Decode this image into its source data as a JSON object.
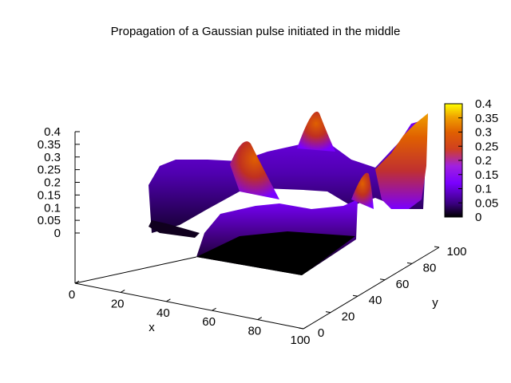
{
  "chart_data": {
    "type": "surface3d",
    "title": "Propagation of a Gaussian pulse initiated in the middle",
    "xlabel": "x",
    "ylabel": "y",
    "zlabel": "",
    "xlim": [
      0,
      100
    ],
    "ylim": [
      0,
      100
    ],
    "zlim": [
      0,
      0.4
    ],
    "x_ticks": [
      "0",
      "20",
      "40",
      "60",
      "80",
      "100"
    ],
    "y_ticks": [
      "0",
      "20",
      "40",
      "60",
      "80",
      "100"
    ],
    "z_ticks": [
      "0",
      "0.05",
      "0.1",
      "0.15",
      "0.2",
      "0.25",
      "0.3",
      "0.35",
      "0.4"
    ],
    "colorbar": {
      "ticks": [
        "0",
        "0.05",
        "0.1",
        "0.15",
        "0.2",
        "0.25",
        "0.3",
        "0.35",
        "0.4"
      ],
      "range": [
        0,
        0.4
      ],
      "palette": [
        "#000000",
        "#3a0080",
        "#7a00ff",
        "#a020e0",
        "#d04020",
        "#e06000",
        "#f0a000",
        "#ffff00"
      ]
    },
    "peaks": [
      {
        "x": 50,
        "y": 82,
        "z": 0.26
      },
      {
        "x": 75,
        "y": 52,
        "z": 0.27
      },
      {
        "x": 48,
        "y": 52,
        "z": 0.27
      },
      {
        "x": 100,
        "y": 100,
        "z": 0.4
      }
    ],
    "notes": "circular wavefront ring of a spreading Gaussian pulse, low along x=0 edge, high near the y=100 far corner"
  }
}
